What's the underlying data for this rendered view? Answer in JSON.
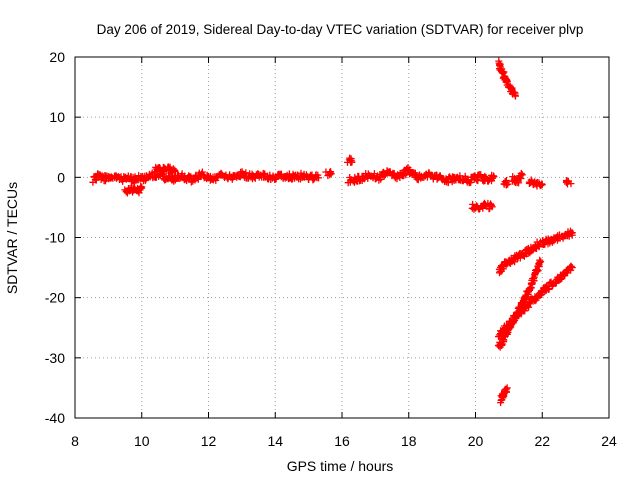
{
  "chart_data": {
    "type": "scatter",
    "title": "Day 206 of 2019, Sidereal Day-to-day VTEC variation (SDTVAR) for receiver plvp",
    "xlabel": "GPS time / hours",
    "ylabel": "SDTVAR / TECUs",
    "xlim": [
      8,
      24
    ],
    "ylim": [
      -40,
      20
    ],
    "xticks": [
      "8",
      "10",
      "12",
      "14",
      "16",
      "18",
      "20",
      "22",
      "24"
    ],
    "yticks": [
      "20",
      "10",
      "0",
      "-10",
      "-20",
      "-30",
      "-40"
    ],
    "grid": true,
    "marker": "plus",
    "color": "#ff0000",
    "segments": [
      {
        "x": [
          8.55,
          8.7,
          8.9,
          9.1,
          9.3,
          9.5,
          9.7,
          9.9,
          10.0
        ],
        "y": [
          -0.5,
          0.2,
          -0.2,
          0.1,
          -0.3,
          -0.1,
          -0.4,
          -0.2,
          -0.1
        ]
      },
      {
        "x": [
          9.5,
          9.7,
          9.85,
          10.0
        ],
        "y": [
          -2.3,
          -1.9,
          -2.4,
          -1.6
        ]
      },
      {
        "x": [
          10.0,
          10.3,
          10.6,
          10.9,
          11.2,
          11.5,
          11.8,
          12.1,
          12.4,
          12.7,
          13.0,
          13.3,
          13.6,
          13.9,
          14.2,
          14.5,
          14.8,
          15.1,
          15.3
        ],
        "y": [
          -0.4,
          0.4,
          0.3,
          -0.5,
          0.2,
          -0.4,
          0.5,
          -0.3,
          0.3,
          -0.1,
          0.5,
          0.2,
          0.4,
          0.0,
          0.3,
          0.1,
          0.2,
          0.0,
          -0.1
        ]
      },
      {
        "x": [
          10.4,
          10.7,
          11.0
        ],
        "y": [
          1.2,
          1.4,
          1.0
        ]
      },
      {
        "x": [
          15.6
        ],
        "y": [
          0.6
        ]
      },
      {
        "x": [
          16.2,
          16.5,
          16.8,
          17.1,
          17.4,
          17.7,
          18.0,
          18.3,
          18.6,
          18.9,
          19.2,
          19.5,
          19.8,
          20.1,
          20.4,
          20.55
        ],
        "y": [
          -0.5,
          -0.3,
          0.3,
          0.0,
          0.8,
          0.1,
          1.2,
          0.0,
          0.3,
          -0.2,
          -0.4,
          0.1,
          -0.5,
          0.0,
          -0.3,
          0.1
        ]
      },
      {
        "x": [
          16.25
        ],
        "y": [
          2.8
        ]
      },
      {
        "x": [
          19.9,
          20.1,
          20.3,
          20.5
        ],
        "y": [
          -4.8,
          -4.9,
          -4.7,
          -4.9
        ]
      },
      {
        "x": [
          20.9
        ],
        "y": [
          -0.9
        ]
      },
      {
        "x": [
          21.1,
          21.3,
          21.4
        ],
        "y": [
          -0.2,
          -0.5,
          0.4
        ]
      },
      {
        "x": [
          21.6,
          21.8,
          22.0
        ],
        "y": [
          -0.8,
          -1.1,
          -1.2
        ]
      },
      {
        "x": [
          22.8
        ],
        "y": [
          -0.7
        ]
      },
      {
        "x": [
          20.7,
          20.8,
          20.9,
          21.0,
          21.1,
          21.2
        ],
        "y": [
          19.0,
          17.5,
          16.3,
          15.2,
          14.3,
          13.5
        ]
      },
      {
        "x": [
          20.7,
          20.9,
          21.1,
          21.3,
          21.5,
          21.7,
          21.9,
          22.1,
          22.3,
          22.5,
          22.7,
          22.9
        ],
        "y": [
          -15.5,
          -14.4,
          -13.8,
          -13.1,
          -12.5,
          -11.8,
          -11.1,
          -10.7,
          -10.4,
          -10.0,
          -9.7,
          -9.2
        ]
      },
      {
        "x": [
          20.7,
          20.95,
          21.2,
          21.45,
          21.7,
          21.95
        ],
        "y": [
          -28.3,
          -25.8,
          -23.1,
          -20.5,
          -17.3,
          -14.0
        ]
      },
      {
        "x": [
          20.7,
          21.0,
          21.3,
          21.6,
          21.9,
          22.2,
          22.5,
          22.8,
          22.9
        ],
        "y": [
          -26.2,
          -24.4,
          -22.6,
          -21.0,
          -19.5,
          -18.1,
          -16.8,
          -15.5,
          -15.0
        ]
      },
      {
        "x": [
          20.75,
          20.85,
          20.95
        ],
        "y": [
          -37.0,
          -36.0,
          -35.0
        ]
      }
    ]
  }
}
